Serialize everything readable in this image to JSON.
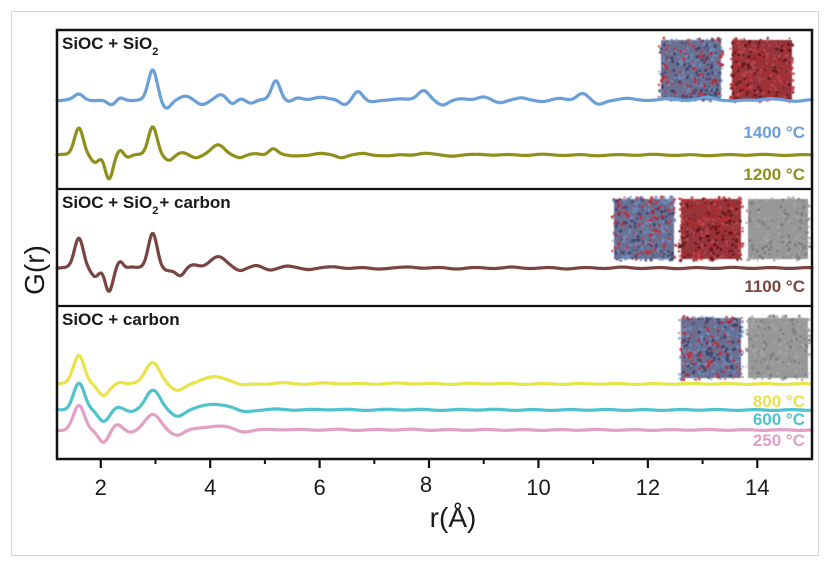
{
  "chart_data": {
    "type": "line",
    "title": "",
    "xlabel": "r(Å)",
    "ylabel": "G(r)",
    "xlim": [
      1.2,
      15
    ],
    "x_ticks": [
      2,
      4,
      6,
      8,
      10,
      12,
      14
    ],
    "x_tick_labels": [
      "2",
      "4",
      "6",
      "8",
      "10",
      "12",
      "14"
    ],
    "x_minor_ticks": [
      3,
      5,
      7,
      9,
      11,
      13
    ],
    "grid": false,
    "panels": [
      {
        "title": "SiOC + SiO",
        "title_sub": "2",
        "title_suffix": "",
        "structures": [
          "SiOC",
          "SiO2"
        ],
        "series": [
          {
            "name": "1400 °C",
            "label": "1400 °C",
            "color": "#6a9fd8",
            "baseline": 0.0,
            "peaks": [
              [
                1.6,
                0.25,
                0.08
              ],
              [
                2.2,
                -0.25,
                0.08
              ],
              [
                2.35,
                0.12,
                0.07
              ],
              [
                2.95,
                1.35,
                0.08
              ],
              [
                3.2,
                -0.35,
                0.08
              ],
              [
                3.55,
                0.15,
                0.1
              ],
              [
                3.85,
                -0.18,
                0.1
              ],
              [
                4.2,
                0.22,
                0.1
              ],
              [
                4.4,
                -0.2,
                0.08
              ],
              [
                4.55,
                0.1,
                0.08
              ],
              [
                4.75,
                -0.15,
                0.08
              ],
              [
                5.2,
                0.9,
                0.08
              ],
              [
                5.45,
                -0.08,
                0.08
              ],
              [
                5.6,
                0.08,
                0.08
              ],
              [
                6.0,
                0.14,
                0.12
              ],
              [
                6.45,
                -0.2,
                0.08
              ],
              [
                6.7,
                0.4,
                0.08
              ],
              [
                6.95,
                -0.1,
                0.1
              ],
              [
                7.4,
                0.05,
                0.12
              ],
              [
                7.9,
                0.45,
                0.1
              ],
              [
                8.25,
                -0.25,
                0.1
              ],
              [
                8.6,
                0.08,
                0.1
              ],
              [
                9.0,
                0.12,
                0.1
              ],
              [
                9.3,
                -0.1,
                0.1
              ],
              [
                9.7,
                0.08,
                0.1
              ],
              [
                10.1,
                -0.06,
                0.1
              ],
              [
                10.4,
                0.06,
                0.1
              ],
              [
                10.8,
                0.3,
                0.1
              ],
              [
                11.1,
                -0.2,
                0.1
              ],
              [
                11.6,
                0.06,
                0.12
              ],
              [
                12.4,
                0.05,
                0.12
              ],
              [
                13.1,
                0.12,
                0.12
              ],
              [
                13.6,
                -0.05,
                0.12
              ],
              [
                14.2,
                0.06,
                0.12
              ],
              [
                14.7,
                -0.04,
                0.12
              ]
            ]
          },
          {
            "name": "1200 °C",
            "label": "1200 °C",
            "color": "#8f8f1c",
            "baseline": 0.0,
            "peaks": [
              [
                1.6,
                1.25,
                0.08
              ],
              [
                1.9,
                -0.35,
                0.07
              ],
              [
                2.15,
                -1.1,
                0.07
              ],
              [
                2.35,
                0.25,
                0.06
              ],
              [
                2.5,
                -0.1,
                0.06
              ],
              [
                2.95,
                1.3,
                0.08
              ],
              [
                3.25,
                -0.25,
                0.08
              ],
              [
                3.5,
                0.1,
                0.08
              ],
              [
                3.75,
                -0.1,
                0.08
              ],
              [
                4.15,
                0.45,
                0.12
              ],
              [
                4.55,
                -0.12,
                0.08
              ],
              [
                4.85,
                0.05,
                0.08
              ],
              [
                5.15,
                0.3,
                0.08
              ],
              [
                5.5,
                -0.05,
                0.1
              ],
              [
                6.0,
                0.05,
                0.12
              ],
              [
                6.4,
                -0.1,
                0.08
              ],
              [
                6.8,
                0.05,
                0.1
              ],
              [
                7.3,
                -0.04,
                0.1
              ],
              [
                7.9,
                0.08,
                0.12
              ],
              [
                8.4,
                -0.03,
                0.12
              ],
              [
                9.0,
                0.03,
                0.12
              ],
              [
                10.0,
                0.02,
                0.12
              ],
              [
                11.0,
                -0.02,
                0.12
              ],
              [
                12.0,
                0.02,
                0.12
              ],
              [
                13.0,
                -0.02,
                0.12
              ],
              [
                14.0,
                0.02,
                0.12
              ]
            ]
          }
        ],
        "series_offsets": [
          0.35,
          -0.95
        ]
      },
      {
        "title": "SiOC + SiO",
        "title_sub": "2",
        "title_suffix": "+ carbon",
        "structures": [
          "SiOC",
          "SiO2",
          "carbon"
        ],
        "series": [
          {
            "name": "1100 °C",
            "label": "1100 °C",
            "color": "#7a4440",
            "baseline": 0.0,
            "peaks": [
              [
                1.6,
                1.25,
                0.08
              ],
              [
                1.9,
                -0.35,
                0.07
              ],
              [
                2.15,
                -1.0,
                0.07
              ],
              [
                2.35,
                0.3,
                0.06
              ],
              [
                2.55,
                0.05,
                0.06
              ],
              [
                2.95,
                1.45,
                0.08
              ],
              [
                3.25,
                -0.1,
                0.08
              ],
              [
                3.45,
                -0.35,
                0.08
              ],
              [
                3.7,
                0.15,
                0.1
              ],
              [
                4.15,
                0.45,
                0.15
              ],
              [
                4.55,
                -0.1,
                0.08
              ],
              [
                4.85,
                0.08,
                0.08
              ],
              [
                5.1,
                -0.06,
                0.08
              ],
              [
                5.4,
                0.06,
                0.1
              ],
              [
                5.8,
                -0.04,
                0.1
              ],
              [
                6.3,
                0.04,
                0.12
              ],
              [
                7.0,
                -0.03,
                0.12
              ],
              [
                7.7,
                0.04,
                0.12
              ],
              [
                8.5,
                -0.02,
                0.12
              ],
              [
                9.5,
                0.02,
                0.12
              ],
              [
                10.5,
                -0.02,
                0.12
              ],
              [
                11.5,
                0.02,
                0.12
              ],
              [
                12.5,
                -0.01,
                0.12
              ],
              [
                13.5,
                0.01,
                0.12
              ]
            ]
          }
        ],
        "series_offsets": [
          -0.3
        ]
      },
      {
        "title": "SiOC + carbon",
        "title_sub": "",
        "title_suffix": "",
        "structures": [
          "SiOC",
          "carbon"
        ],
        "series": [
          {
            "name": "800 °C",
            "label": "800 °C",
            "color": "#e8e34a",
            "baseline": 0.0,
            "peaks": [
              [
                1.6,
                1.45,
                0.1
              ],
              [
                2.05,
                -0.6,
                0.1
              ],
              [
                2.35,
                0.1,
                0.08
              ],
              [
                2.95,
                1.1,
                0.13
              ],
              [
                3.4,
                -0.35,
                0.12
              ],
              [
                4.1,
                0.35,
                0.25
              ],
              [
                4.6,
                -0.1,
                0.12
              ],
              [
                5.3,
                0.04,
                0.2
              ],
              [
                6.2,
                0.04,
                0.2
              ],
              [
                7.5,
                0.03,
                0.3
              ],
              [
                9.0,
                0.02,
                0.3
              ],
              [
                11.0,
                0.01,
                0.3
              ],
              [
                13.0,
                0.01,
                0.3
              ]
            ]
          },
          {
            "name": "600 °C",
            "label": "600 °C",
            "color": "#4fc3cc",
            "baseline": 0.0,
            "peaks": [
              [
                1.6,
                1.35,
                0.1
              ],
              [
                2.05,
                -0.55,
                0.1
              ],
              [
                2.3,
                0.15,
                0.08
              ],
              [
                2.55,
                -0.1,
                0.08
              ],
              [
                2.95,
                1.0,
                0.13
              ],
              [
                3.4,
                -0.3,
                0.12
              ],
              [
                4.1,
                0.3,
                0.25
              ],
              [
                4.6,
                -0.12,
                0.12
              ],
              [
                5.3,
                0.03,
                0.2
              ],
              [
                6.2,
                0.03,
                0.2
              ],
              [
                7.5,
                0.02,
                0.3
              ],
              [
                9.0,
                0.02,
                0.3
              ],
              [
                11.0,
                0.01,
                0.3
              ],
              [
                13.0,
                0.01,
                0.3
              ]
            ]
          },
          {
            "name": "250 °C",
            "label": "250 °C",
            "color": "#e2a0c4",
            "baseline": 0.0,
            "peaks": [
              [
                1.6,
                1.2,
                0.1
              ],
              [
                2.05,
                -0.6,
                0.09
              ],
              [
                2.3,
                0.25,
                0.08
              ],
              [
                2.55,
                -0.1,
                0.08
              ],
              [
                2.95,
                0.75,
                0.14
              ],
              [
                3.4,
                -0.25,
                0.12
              ],
              [
                4.1,
                0.2,
                0.25
              ],
              [
                4.6,
                -0.1,
                0.12
              ],
              [
                5.3,
                0.03,
                0.2
              ],
              [
                6.2,
                0.02,
                0.2
              ],
              [
                7.5,
                0.02,
                0.3
              ],
              [
                9.0,
                0.01,
                0.3
              ],
              [
                11.0,
                0.01,
                0.3
              ],
              [
                13.0,
                0.01,
                0.3
              ]
            ]
          }
        ],
        "series_offsets": [
          1.2,
          0.15,
          -0.9
        ]
      }
    ]
  },
  "structure_colors": {
    "SiOC": "#5a5f86",
    "SiO2": "#9b2226",
    "carbon": "#8a8a8a",
    "atom_red": "#c0282b",
    "atom_blue": "#6f8fbf"
  }
}
